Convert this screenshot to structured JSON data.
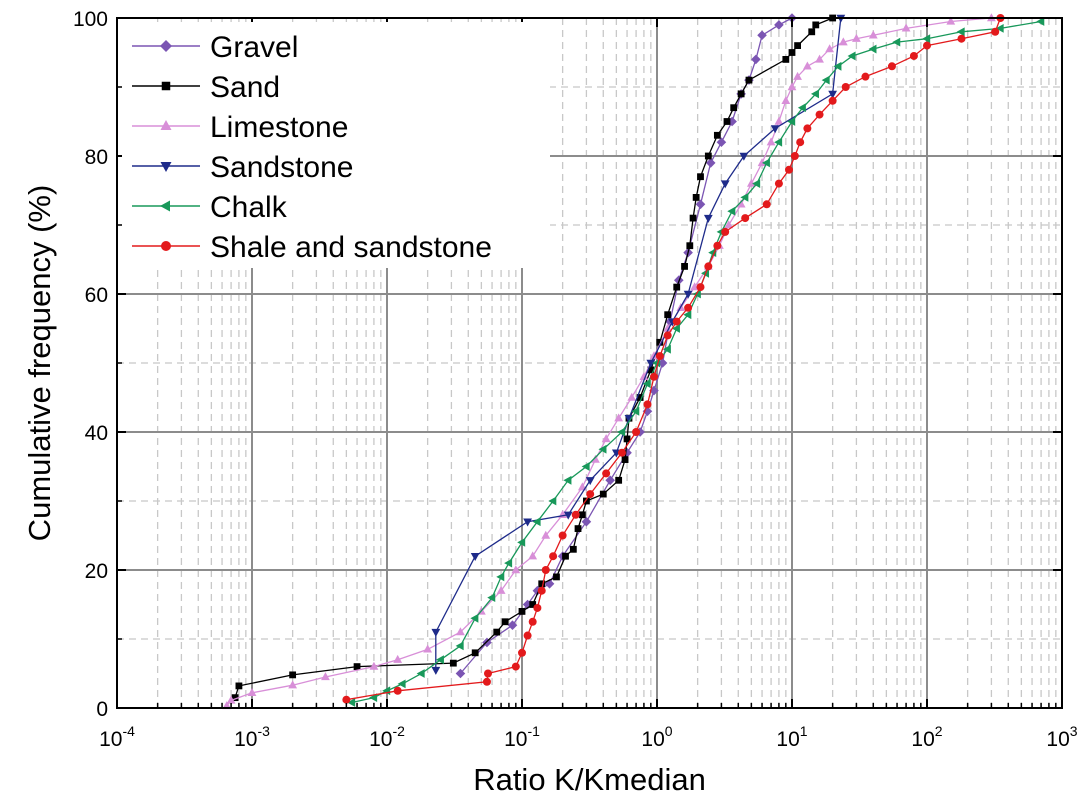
{
  "chart_data": {
    "type": "line",
    "title": "",
    "xlabel": "Ratio K/Kmedian",
    "ylabel": "Cumulative frequency (%)",
    "x_scale": "log",
    "xlim": [
      0.0001,
      1000
    ],
    "ylim": [
      0,
      100
    ],
    "x_ticks": [
      0.0001,
      0.001,
      0.01,
      0.1,
      1,
      10,
      100,
      1000
    ],
    "x_tick_labels": [
      {
        "base": "10",
        "exp": "-4"
      },
      {
        "base": "10",
        "exp": "-3"
      },
      {
        "base": "10",
        "exp": "-2"
      },
      {
        "base": "10",
        "exp": "-1"
      },
      {
        "base": "10",
        "exp": "0"
      },
      {
        "base": "10",
        "exp": "1"
      },
      {
        "base": "10",
        "exp": "2"
      },
      {
        "base": "10",
        "exp": "3"
      }
    ],
    "y_ticks": [
      0,
      20,
      40,
      60,
      80,
      100
    ],
    "y_tick_labels": [
      "0",
      "20",
      "40",
      "60",
      "80",
      "100"
    ],
    "grid": true,
    "legend_position": "top-left",
    "series": [
      {
        "name": "Gravel",
        "color": "#7b55b3",
        "marker": "diamond",
        "points": [
          [
            0.035,
            5
          ],
          [
            0.055,
            9.5
          ],
          [
            0.085,
            12
          ],
          [
            0.11,
            15
          ],
          [
            0.13,
            17
          ],
          [
            0.16,
            18
          ],
          [
            0.2,
            22
          ],
          [
            0.3,
            27
          ],
          [
            0.45,
            33
          ],
          [
            0.6,
            37
          ],
          [
            0.75,
            40
          ],
          [
            0.85,
            43
          ],
          [
            0.95,
            46
          ],
          [
            1.1,
            50
          ],
          [
            1.25,
            56
          ],
          [
            1.45,
            62
          ],
          [
            1.7,
            66
          ],
          [
            2.1,
            73
          ],
          [
            2.5,
            79
          ],
          [
            3.0,
            82
          ],
          [
            3.6,
            85
          ],
          [
            4.2,
            89
          ],
          [
            4.8,
            91
          ],
          [
            5.4,
            94
          ],
          [
            6.0,
            97.5
          ],
          [
            8.0,
            99
          ],
          [
            10,
            100
          ]
        ]
      },
      {
        "name": "Sand",
        "color": "#000000",
        "marker": "square",
        "points": [
          [
            0.00075,
            1.5
          ],
          [
            0.0008,
            3.2
          ],
          [
            0.002,
            4.8
          ],
          [
            0.006,
            6
          ],
          [
            0.031,
            6.5
          ],
          [
            0.045,
            8
          ],
          [
            0.065,
            11
          ],
          [
            0.075,
            12.5
          ],
          [
            0.1,
            14
          ],
          [
            0.12,
            15
          ],
          [
            0.14,
            18
          ],
          [
            0.18,
            19
          ],
          [
            0.21,
            22
          ],
          [
            0.24,
            23
          ],
          [
            0.26,
            26
          ],
          [
            0.28,
            28
          ],
          [
            0.3,
            30
          ],
          [
            0.4,
            31
          ],
          [
            0.52,
            33
          ],
          [
            0.58,
            36
          ],
          [
            0.6,
            39
          ],
          [
            0.62,
            42
          ],
          [
            0.75,
            45
          ],
          [
            0.9,
            49
          ],
          [
            1.05,
            53
          ],
          [
            1.2,
            57
          ],
          [
            1.4,
            61
          ],
          [
            1.6,
            64
          ],
          [
            1.75,
            67
          ],
          [
            1.85,
            71
          ],
          [
            1.95,
            74
          ],
          [
            2.1,
            77
          ],
          [
            2.4,
            80
          ],
          [
            2.8,
            83
          ],
          [
            3.3,
            85
          ],
          [
            3.7,
            87
          ],
          [
            4.2,
            89
          ],
          [
            4.8,
            91
          ],
          [
            9.0,
            94
          ],
          [
            10,
            95
          ],
          [
            11,
            96
          ],
          [
            14,
            98
          ],
          [
            15,
            99
          ],
          [
            20,
            100
          ]
        ]
      },
      {
        "name": "Limestone",
        "color": "#d88fd8",
        "marker": "triangle-up",
        "points": [
          [
            0.00065,
            0.3
          ],
          [
            0.0007,
            1.1
          ],
          [
            0.001,
            2.2
          ],
          [
            0.002,
            3.3
          ],
          [
            0.0035,
            4.5
          ],
          [
            0.008,
            6
          ],
          [
            0.012,
            7
          ],
          [
            0.02,
            8.5
          ],
          [
            0.035,
            11
          ],
          [
            0.05,
            14
          ],
          [
            0.07,
            17
          ],
          [
            0.09,
            20
          ],
          [
            0.12,
            22
          ],
          [
            0.15,
            25
          ],
          [
            0.2,
            28
          ],
          [
            0.28,
            32
          ],
          [
            0.35,
            36
          ],
          [
            0.42,
            39
          ],
          [
            0.52,
            42
          ],
          [
            0.65,
            45
          ],
          [
            0.8,
            48
          ],
          [
            0.95,
            51
          ],
          [
            1.2,
            55
          ],
          [
            1.5,
            58
          ],
          [
            1.9,
            61
          ],
          [
            2.4,
            64
          ],
          [
            2.9,
            67
          ],
          [
            3.4,
            70
          ],
          [
            4.2,
            73
          ],
          [
            5.0,
            76
          ],
          [
            6.0,
            79
          ],
          [
            7.0,
            82
          ],
          [
            8.0,
            85
          ],
          [
            9.0,
            88
          ],
          [
            10,
            90
          ],
          [
            11,
            91.5
          ],
          [
            13,
            93
          ],
          [
            16,
            94
          ],
          [
            19,
            95.5
          ],
          [
            24,
            96.5
          ],
          [
            30,
            97
          ],
          [
            40,
            97.5
          ],
          [
            70,
            98.5
          ],
          [
            150,
            99.5
          ],
          [
            300,
            100
          ]
        ]
      },
      {
        "name": "Sandstone",
        "color": "#1e2b8a",
        "marker": "triangle-down",
        "points": [
          [
            0.023,
            5.5
          ],
          [
            0.023,
            11
          ],
          [
            0.045,
            22
          ],
          [
            0.11,
            27
          ],
          [
            0.22,
            28
          ],
          [
            0.32,
            33
          ],
          [
            0.5,
            37
          ],
          [
            0.62,
            42
          ],
          [
            0.9,
            50
          ],
          [
            1.3,
            56
          ],
          [
            1.7,
            60
          ],
          [
            2.4,
            71
          ],
          [
            3.2,
            76
          ],
          [
            4.4,
            80
          ],
          [
            7.5,
            84
          ],
          [
            20,
            89
          ],
          [
            23,
            100
          ]
        ]
      },
      {
        "name": "Chalk",
        "color": "#18985a",
        "marker": "triangle-left",
        "points": [
          [
            0.0055,
            0.8
          ],
          [
            0.008,
            1.5
          ],
          [
            0.01,
            2.5
          ],
          [
            0.013,
            3.5
          ],
          [
            0.018,
            5
          ],
          [
            0.025,
            7
          ],
          [
            0.035,
            9
          ],
          [
            0.045,
            13
          ],
          [
            0.06,
            16
          ],
          [
            0.07,
            19
          ],
          [
            0.08,
            21
          ],
          [
            0.1,
            24
          ],
          [
            0.13,
            27
          ],
          [
            0.17,
            30
          ],
          [
            0.22,
            33
          ],
          [
            0.3,
            35
          ],
          [
            0.4,
            37.5
          ],
          [
            0.55,
            40
          ],
          [
            0.7,
            43
          ],
          [
            0.85,
            47
          ],
          [
            1.0,
            50
          ],
          [
            1.2,
            52
          ],
          [
            1.4,
            55
          ],
          [
            1.7,
            57
          ],
          [
            2.0,
            60
          ],
          [
            2.3,
            63
          ],
          [
            2.6,
            66
          ],
          [
            3.0,
            69
          ],
          [
            3.6,
            72
          ],
          [
            4.5,
            74
          ],
          [
            5.5,
            76
          ],
          [
            6.5,
            79
          ],
          [
            8.0,
            82
          ],
          [
            10,
            85
          ],
          [
            12,
            87
          ],
          [
            15,
            89
          ],
          [
            18,
            91
          ],
          [
            22,
            93
          ],
          [
            28,
            94.5
          ],
          [
            40,
            95.5
          ],
          [
            60,
            96.5
          ],
          [
            100,
            97
          ],
          [
            180,
            98
          ],
          [
            350,
            98.5
          ],
          [
            700,
            99.5
          ]
        ]
      },
      {
        "name": "Shale and sandstone",
        "color": "#e31a1c",
        "marker": "circle",
        "points": [
          [
            0.005,
            1.2
          ],
          [
            0.012,
            2.5
          ],
          [
            0.055,
            3.8
          ],
          [
            0.056,
            5
          ],
          [
            0.09,
            6
          ],
          [
            0.1,
            8
          ],
          [
            0.11,
            10.5
          ],
          [
            0.12,
            12.5
          ],
          [
            0.13,
            14.5
          ],
          [
            0.14,
            17
          ],
          [
            0.15,
            20
          ],
          [
            0.17,
            22
          ],
          [
            0.2,
            25
          ],
          [
            0.25,
            28
          ],
          [
            0.32,
            31
          ],
          [
            0.42,
            34
          ],
          [
            0.55,
            37
          ],
          [
            0.7,
            40
          ],
          [
            0.85,
            44
          ],
          [
            0.95,
            48
          ],
          [
            1.05,
            51
          ],
          [
            1.2,
            54
          ],
          [
            1.4,
            56
          ],
          [
            1.7,
            58
          ],
          [
            2.1,
            61
          ],
          [
            2.4,
            64
          ],
          [
            2.8,
            67
          ],
          [
            3.2,
            69
          ],
          [
            4.5,
            71
          ],
          [
            6.5,
            73
          ],
          [
            8.0,
            76
          ],
          [
            9.5,
            78
          ],
          [
            10.5,
            80
          ],
          [
            11.5,
            82
          ],
          [
            13,
            84
          ],
          [
            16,
            86
          ],
          [
            20,
            88
          ],
          [
            25,
            90
          ],
          [
            35,
            91.5
          ],
          [
            55,
            93
          ],
          [
            80,
            94.5
          ],
          [
            100,
            96
          ],
          [
            180,
            97
          ],
          [
            320,
            98
          ],
          [
            350,
            100
          ]
        ]
      }
    ]
  }
}
